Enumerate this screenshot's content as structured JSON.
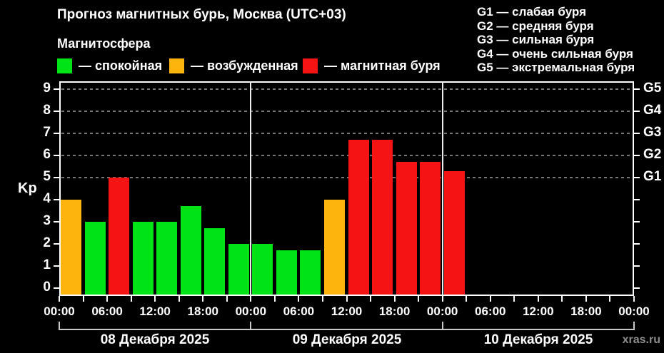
{
  "header": {
    "title": "Прогноз магнитных бурь, Москва (UTC+03)",
    "subtitle": "Магнитосфера",
    "legend": [
      {
        "status": "quiet",
        "label": "— спокойная",
        "color": "#00e316"
      },
      {
        "status": "excited",
        "label": "— возбужденная",
        "color": "#fdb50d"
      },
      {
        "status": "storm",
        "label": "— магнитная буря",
        "color": "#f51313"
      }
    ],
    "storm_scale": [
      "G1 — слабая буря",
      "G2 — средняя буря",
      "G3 — сильная буря",
      "G4 — очень сильная буря",
      "G5 — экстремальная буря"
    ]
  },
  "watermark": "xras.ru",
  "chart_data": {
    "type": "bar",
    "title": "Прогноз магнитных бурь, Москва (UTC+03)",
    "ylabel": "Kp",
    "xlabel": "",
    "ylim": [
      0,
      9
    ],
    "y_axis_padding": 0.36,
    "yticks": [
      0,
      1,
      2,
      3,
      4,
      5,
      6,
      7,
      8,
      9
    ],
    "grid": "dashed horizontal lines at storm levels",
    "grid_levels": [
      5,
      6,
      7,
      8,
      9
    ],
    "right_axis_labels": {
      "5": "G1",
      "6": "G2",
      "7": "G3",
      "8": "G4",
      "9": "G5"
    },
    "legend_position": "top",
    "slot_hours": 3,
    "x_tick_labels": [
      "00:00",
      "06:00",
      "12:00",
      "18:00",
      "00:00",
      "06:00",
      "12:00",
      "18:00",
      "00:00",
      "06:00",
      "12:00",
      "18:00",
      "00:00"
    ],
    "status_colors": {
      "quiet": "#00e316",
      "excited": "#fdb50d",
      "storm": "#f51313"
    },
    "days": [
      {
        "date": "08 Декабря 2025",
        "values": [
          4.0,
          3.0,
          5.0,
          3.0,
          3.0,
          3.7,
          2.7,
          2.0
        ],
        "status": [
          "excited",
          "quiet",
          "storm",
          "quiet",
          "quiet",
          "quiet",
          "quiet",
          "quiet"
        ]
      },
      {
        "date": "09 Декабря 2025",
        "values": [
          2.0,
          1.7,
          1.7,
          4.0,
          6.7,
          6.7,
          5.7,
          5.7
        ],
        "status": [
          "quiet",
          "quiet",
          "quiet",
          "excited",
          "storm",
          "storm",
          "storm",
          "storm"
        ]
      },
      {
        "date": "10 Декабря 2025",
        "values": [
          5.3,
          null,
          null,
          null,
          null,
          null,
          null,
          null
        ],
        "status": [
          "storm",
          null,
          null,
          null,
          null,
          null,
          null,
          null
        ]
      }
    ]
  }
}
